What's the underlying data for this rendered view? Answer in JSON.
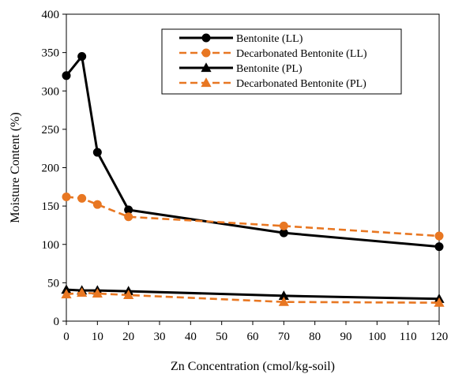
{
  "chart_data": {
    "type": "line",
    "xlabel": "Zn Concentration (cmol/kg-soil)",
    "ylabel": "Moisture Content (%)",
    "xlim": [
      0,
      120
    ],
    "ylim": [
      0,
      400
    ],
    "xticks": [
      0,
      10,
      20,
      30,
      40,
      50,
      60,
      70,
      80,
      90,
      100,
      110,
      120
    ],
    "yticks": [
      0,
      50,
      100,
      150,
      200,
      250,
      300,
      350,
      400
    ],
    "grid": false,
    "legend_position": "top-right",
    "series": [
      {
        "name": "Bentonite (LL)",
        "color": "#000000",
        "dash": "solid",
        "marker": "circle",
        "x": [
          0,
          5,
          10,
          20,
          70,
          120
        ],
        "y": [
          320,
          345,
          220,
          145,
          115,
          97
        ]
      },
      {
        "name": "Decarbonated Bentonite (LL)",
        "color": "#E87722",
        "dash": "dashed",
        "marker": "circle",
        "x": [
          0,
          5,
          10,
          20,
          70,
          120
        ],
        "y": [
          162,
          160,
          152,
          136,
          124,
          111
        ]
      },
      {
        "name": "Bentonite (PL)",
        "color": "#000000",
        "dash": "solid",
        "marker": "triangle",
        "x": [
          0,
          5,
          10,
          20,
          70,
          120
        ],
        "y": [
          41,
          40,
          40,
          39,
          33,
          29
        ]
      },
      {
        "name": "Decarbonated Bentonite (PL)",
        "color": "#E87722",
        "dash": "dashed",
        "marker": "triangle",
        "x": [
          0,
          5,
          10,
          20,
          70,
          120
        ],
        "y": [
          35,
          37,
          36,
          34,
          25,
          24
        ]
      }
    ]
  }
}
